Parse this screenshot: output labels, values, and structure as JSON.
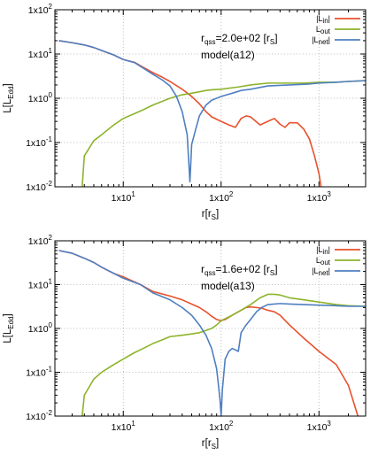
{
  "chart_data": [
    {
      "type": "line",
      "xscale": "log",
      "yscale": "log",
      "xlim": [
        2,
        3000
      ],
      "ylim": [
        0.01,
        100
      ],
      "xticks": [
        {
          "value": 10,
          "base": "1x10",
          "exp": "1"
        },
        {
          "value": 100,
          "base": "1x10",
          "exp": "2"
        },
        {
          "value": 1000,
          "base": "1x10",
          "exp": "3"
        }
      ],
      "yticks": [
        {
          "value": 0.01,
          "base": "1x10",
          "exp": "-2"
        },
        {
          "value": 0.1,
          "base": "1x10",
          "exp": "-1"
        },
        {
          "value": 1,
          "base": "1x10",
          "exp": "0"
        },
        {
          "value": 10,
          "base": "1x10",
          "exp": "1"
        },
        {
          "value": 100,
          "base": "1x10",
          "exp": "2"
        }
      ],
      "xlabel": {
        "main": "r[r",
        "sub": "S",
        "end": "]"
      },
      "ylabel": {
        "main": "L[L",
        "sub": "Edd",
        "end": "]"
      },
      "grid": true,
      "legend_position": "top-right",
      "annotation": {
        "line1_pre": "r",
        "line1_sub": "qss",
        "line1_post": "=2.0e+02 [r",
        "line1_sub2": "S",
        "line1_end": "]",
        "line2": "model(a12)"
      },
      "series": [
        {
          "name_pre": "|L",
          "name_sub": "in",
          "name_post": "|",
          "color": "#e8512d",
          "x": [
            2.2,
            3,
            4,
            5,
            6,
            8,
            10,
            13,
            16,
            20,
            25,
            30,
            40,
            50,
            60,
            70,
            80,
            100,
            120,
            140,
            160,
            180,
            200,
            250,
            300,
            350,
            400,
            450,
            500,
            600,
            700,
            800,
            900,
            1000,
            1050
          ],
          "y": [
            20,
            18,
            16,
            14,
            12,
            9.5,
            7.5,
            6.5,
            5,
            3.8,
            3.0,
            2.4,
            1.6,
            1.1,
            0.75,
            0.5,
            0.38,
            0.3,
            0.25,
            0.22,
            0.35,
            0.4,
            0.38,
            0.25,
            0.3,
            0.35,
            0.26,
            0.22,
            0.28,
            0.28,
            0.2,
            0.12,
            0.05,
            0.02,
            0.01
          ]
        },
        {
          "name_pre": "L",
          "name_sub": "out",
          "name_post": "",
          "color": "#8db32c",
          "x": [
            3.8,
            4,
            5,
            6,
            8,
            10,
            13,
            16,
            20,
            25,
            30,
            40,
            50,
            60,
            70,
            80,
            100,
            150,
            200,
            300,
            400,
            500,
            700,
            1000,
            1500,
            2000,
            3000
          ],
          "y": [
            0.01,
            0.05,
            0.11,
            0.15,
            0.25,
            0.35,
            0.45,
            0.55,
            0.7,
            0.85,
            1.0,
            1.2,
            1.3,
            1.4,
            1.5,
            1.55,
            1.6,
            1.8,
            2.0,
            2.2,
            2.2,
            2.2,
            2.2,
            2.3,
            2.3,
            2.4,
            2.5
          ]
        },
        {
          "name_pre": "|L",
          "name_sub": "net",
          "name_post": "|",
          "color": "#4f7fc0",
          "x": [
            2.2,
            3,
            4,
            5,
            6,
            8,
            10,
            13,
            16,
            20,
            25,
            30,
            35,
            40,
            45,
            48,
            50,
            55,
            60,
            70,
            80,
            100,
            130,
            160,
            200,
            300,
            500,
            800,
            1000,
            1500,
            2000,
            3000
          ],
          "y": [
            20,
            18,
            16,
            14,
            12,
            9.5,
            7.5,
            6.4,
            4.8,
            3.5,
            2.6,
            1.9,
            1.1,
            0.5,
            0.15,
            0.013,
            0.09,
            0.2,
            0.4,
            0.7,
            0.9,
            1.1,
            1.3,
            1.5,
            1.6,
            1.9,
            2.0,
            2.1,
            2.2,
            2.3,
            2.4,
            2.5
          ]
        }
      ]
    },
    {
      "type": "line",
      "xscale": "log",
      "yscale": "log",
      "xlim": [
        2,
        3000
      ],
      "ylim": [
        0.01,
        100
      ],
      "xticks": [
        {
          "value": 10,
          "base": "1x10",
          "exp": "1"
        },
        {
          "value": 100,
          "base": "1x10",
          "exp": "2"
        },
        {
          "value": 1000,
          "base": "1x10",
          "exp": "3"
        }
      ],
      "yticks": [
        {
          "value": 0.01,
          "base": "1x10",
          "exp": "-2"
        },
        {
          "value": 0.1,
          "base": "1x10",
          "exp": "-1"
        },
        {
          "value": 1,
          "base": "1x10",
          "exp": "0"
        },
        {
          "value": 10,
          "base": "1x10",
          "exp": "1"
        },
        {
          "value": 100,
          "base": "1x10",
          "exp": "2"
        }
      ],
      "xlabel": {
        "main": "r[r",
        "sub": "S",
        "end": "]"
      },
      "ylabel": {
        "main": "L[L",
        "sub": "Edd",
        "end": "]"
      },
      "grid": true,
      "legend_position": "top-right",
      "annotation": {
        "line1_pre": "r",
        "line1_sub": "qss",
        "line1_post": "=1.6e+02 [r",
        "line1_sub2": "S",
        "line1_end": "]",
        "line2": "model(a13)"
      },
      "series": [
        {
          "name_pre": "|L",
          "name_sub": "in",
          "name_post": "|",
          "color": "#e8512d",
          "x": [
            2.2,
            3,
            4,
            5,
            6,
            8,
            10,
            15,
            20,
            30,
            40,
            50,
            60,
            70,
            80,
            90,
            100,
            110,
            130,
            160,
            180,
            200,
            230,
            260,
            300,
            350,
            400,
            500,
            700,
            1000,
            1500,
            2000,
            2500
          ],
          "y": [
            60,
            52,
            40,
            32,
            25,
            18,
            15,
            10,
            7,
            5.5,
            4.5,
            3.6,
            3.0,
            2.4,
            1.9,
            1.6,
            1.5,
            1.6,
            2.0,
            2.6,
            3.0,
            3.1,
            3.0,
            2.9,
            2.6,
            2.4,
            2.0,
            1.2,
            0.6,
            0.3,
            0.15,
            0.05,
            0.01
          ]
        },
        {
          "name_pre": "L",
          "name_sub": "out",
          "name_post": "",
          "color": "#8db32c",
          "x": [
            3.8,
            4,
            5,
            6,
            8,
            10,
            13,
            16,
            20,
            25,
            30,
            40,
            50,
            60,
            70,
            80,
            90,
            100,
            130,
            160,
            200,
            250,
            300,
            350,
            400,
            500,
            700,
            1000,
            1500,
            2000,
            3000
          ],
          "y": [
            0.01,
            0.03,
            0.07,
            0.1,
            0.15,
            0.2,
            0.28,
            0.35,
            0.45,
            0.55,
            0.65,
            0.7,
            0.75,
            0.8,
            0.9,
            1.0,
            1.2,
            1.5,
            2.0,
            2.6,
            3.5,
            5.0,
            6.0,
            6.0,
            5.8,
            5.0,
            4.5,
            4.0,
            3.5,
            3.3,
            3.2
          ]
        },
        {
          "name_pre": "|L",
          "name_sub": "net",
          "name_post": "|",
          "color": "#4f7fc0",
          "x": [
            2.2,
            3,
            4,
            5,
            6,
            8,
            10,
            15,
            20,
            30,
            40,
            50,
            60,
            70,
            80,
            90,
            95,
            98,
            100,
            103,
            110,
            120,
            130,
            150,
            160,
            180,
            200,
            230,
            260,
            300,
            400,
            500,
            700,
            1000,
            1500,
            2000,
            3000
          ],
          "y": [
            60,
            52,
            40,
            32,
            25,
            18,
            14,
            10,
            6.5,
            4.5,
            3.0,
            2.0,
            1.2,
            0.7,
            0.35,
            0.12,
            0.04,
            0.02,
            0.01,
            0.04,
            0.2,
            0.3,
            0.35,
            0.3,
            0.8,
            1.2,
            1.6,
            2.4,
            3.0,
            3.5,
            3.7,
            3.6,
            3.5,
            3.4,
            3.3,
            3.2,
            3.2
          ]
        }
      ]
    }
  ]
}
